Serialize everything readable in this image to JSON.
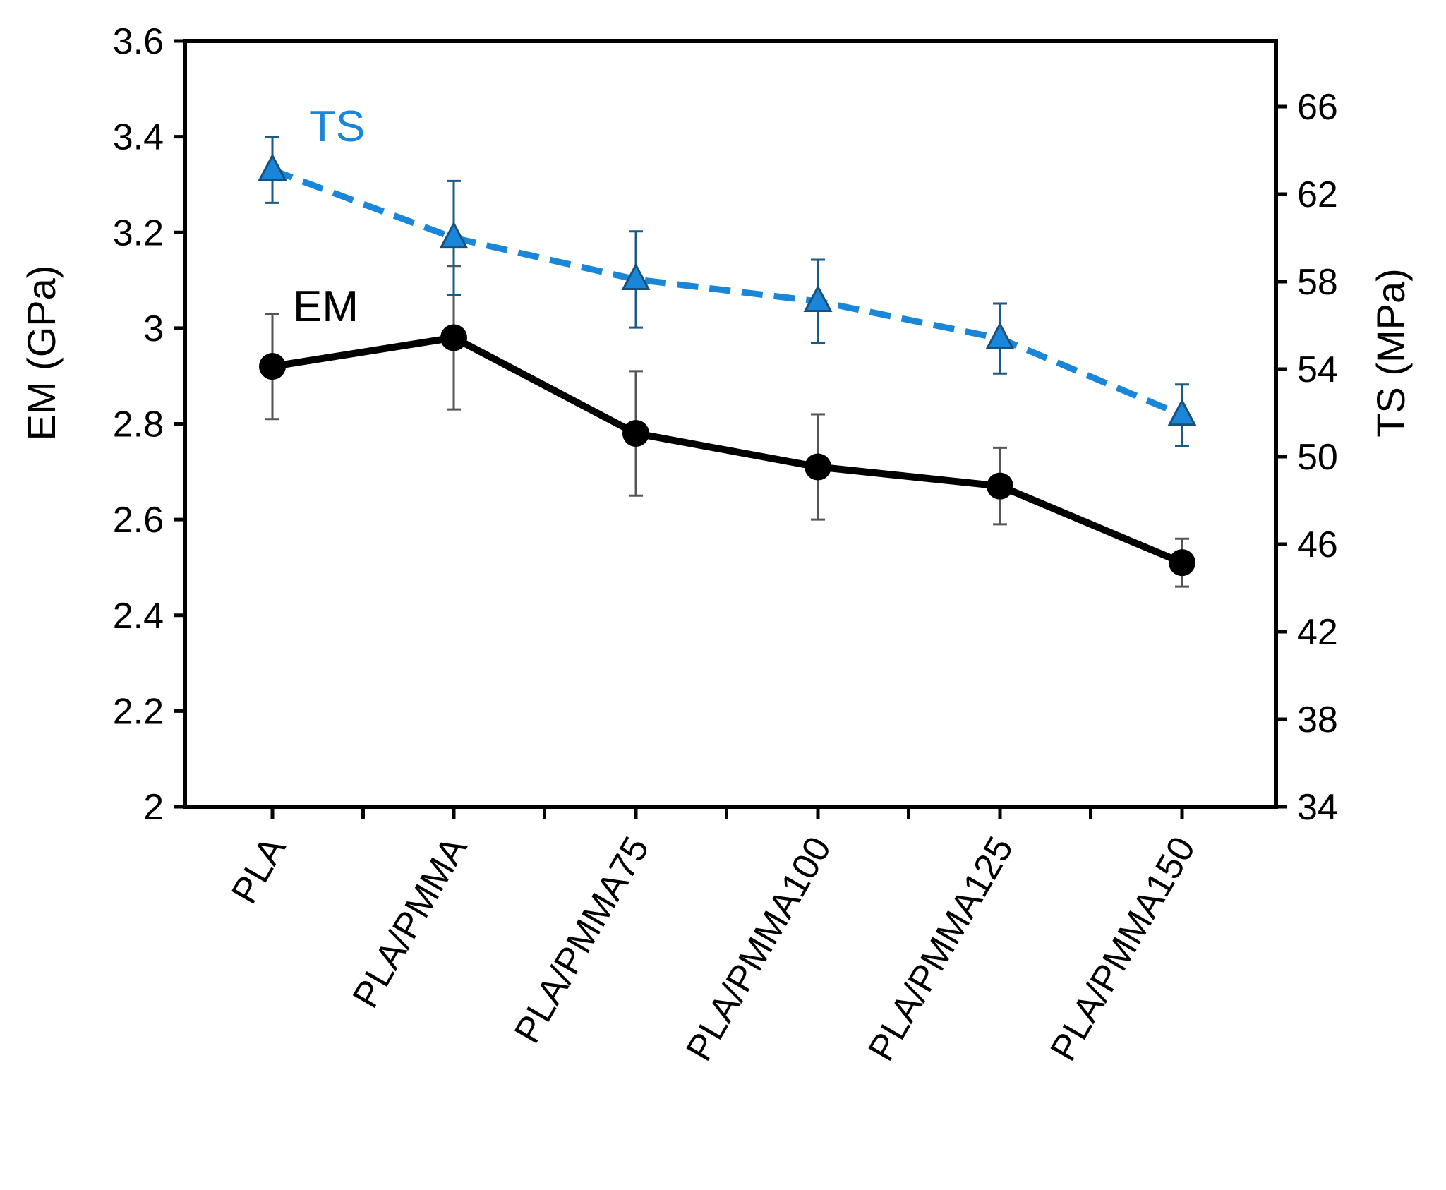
{
  "chart_data": {
    "type": "line",
    "categories": [
      "PLA",
      "PLA/PMMA",
      "PLA/PMMA75",
      "PLA/PMMA100",
      "PLA/PMMA125",
      "PLA/PMMA150"
    ],
    "series": [
      {
        "name": "EM",
        "label": "EM",
        "axis": "left",
        "color": "#000000",
        "marker": "circle",
        "line_style": "solid",
        "values": [
          2.92,
          2.98,
          2.78,
          2.71,
          2.67,
          2.51
        ],
        "errors": [
          0.11,
          0.15,
          0.13,
          0.11,
          0.08,
          0.05
        ]
      },
      {
        "name": "TS",
        "label": "TS",
        "axis": "right",
        "color": "#1a86d9",
        "marker": "triangle",
        "line_style": "dashed",
        "values": [
          63.1,
          60.0,
          58.1,
          57.1,
          55.4,
          51.9
        ],
        "errors": [
          1.5,
          2.6,
          2.2,
          1.9,
          1.6,
          1.4
        ]
      }
    ],
    "left_axis": {
      "label": "EM (GPa)",
      "ylim": [
        2,
        3.6
      ],
      "ticks": [
        2,
        2.2,
        2.4,
        2.6,
        2.8,
        3,
        3.2,
        3.4,
        3.6
      ],
      "tick_labels": [
        "2",
        "2.2",
        "2.4",
        "2.6",
        "2.8",
        "3",
        "3.2",
        "3.4",
        "3.6"
      ]
    },
    "right_axis": {
      "label": "TS (MPa)",
      "ylim": [
        34,
        69
      ],
      "ticks": [
        34,
        38,
        42,
        46,
        50,
        54,
        58,
        62,
        66
      ],
      "tick_labels": [
        "34",
        "38",
        "42",
        "46",
        "50",
        "54",
        "58",
        "62",
        "66"
      ]
    },
    "title": "",
    "xlabel": "",
    "grid": false,
    "legend": "inline labels"
  }
}
